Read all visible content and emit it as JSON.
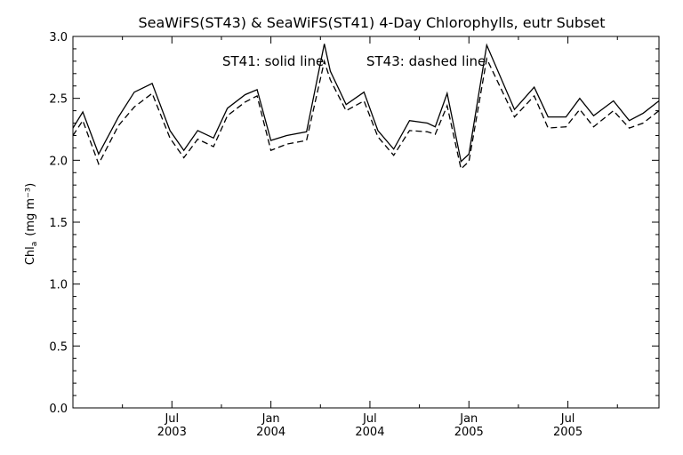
{
  "chart_data": {
    "type": "line",
    "title": "SeaWiFS(ST43) & SeaWiFS(ST41) 4-Day Chlorophylls, eutr Subset",
    "ylabel": "Chla (mg m⁻³)",
    "ylabel_main": "Chl",
    "ylabel_sub": "a",
    "ylabel_units": "(mg m⁻³)",
    "annotation_st41": "ST41: solid line",
    "annotation_st43": "ST43: dashed line",
    "ylim": [
      0.0,
      3.0
    ],
    "yticks": [
      "0.0",
      "0.5",
      "1.0",
      "1.5",
      "2.0",
      "2.5",
      "3.0"
    ],
    "xlim": [
      2003.0,
      2005.96
    ],
    "xticks": [
      {
        "month": "Jul",
        "year": "2003",
        "value": 2003.5
      },
      {
        "month": "Jan",
        "year": "2004",
        "value": 2004.0
      },
      {
        "month": "Jul",
        "year": "2004",
        "value": 2004.5
      },
      {
        "month": "Jan",
        "year": "2005",
        "value": 2005.0
      },
      {
        "month": "Jul",
        "year": "2005",
        "value": 2005.5
      }
    ],
    "minor_ticks": [
      2003.25,
      2003.75,
      2004.25,
      2004.75,
      2005.25,
      2005.75
    ],
    "x": [
      2003.0,
      2003.05,
      2003.13,
      2003.23,
      2003.31,
      2003.4,
      2003.49,
      2003.56,
      2003.63,
      2003.71,
      2003.78,
      2003.87,
      2003.93,
      2004.0,
      2004.08,
      2004.18,
      2004.27,
      2004.3,
      2004.38,
      2004.47,
      2004.54,
      2004.62,
      2004.7,
      2004.79,
      2004.83,
      2004.89,
      2004.96,
      2005.0,
      2005.09,
      2005.23,
      2005.33,
      2005.4,
      2005.49,
      2005.56,
      2005.63,
      2005.73,
      2005.81,
      2005.88,
      2005.96
    ],
    "series": [
      {
        "name": "ST41",
        "style": "solid",
        "color": "#000000",
        "values": [
          2.26,
          2.39,
          2.05,
          2.35,
          2.55,
          2.62,
          2.24,
          2.08,
          2.24,
          2.18,
          2.42,
          2.53,
          2.57,
          2.16,
          2.2,
          2.23,
          2.94,
          2.72,
          2.45,
          2.55,
          2.24,
          2.09,
          2.32,
          2.3,
          2.27,
          2.54,
          1.99,
          2.05,
          2.93,
          2.41,
          2.59,
          2.35,
          2.35,
          2.5,
          2.36,
          2.48,
          2.32,
          2.38,
          2.48
        ]
      },
      {
        "name": "ST43",
        "style": "dashed",
        "color": "#000000",
        "values": [
          2.2,
          2.32,
          1.97,
          2.28,
          2.43,
          2.54,
          2.18,
          2.02,
          2.17,
          2.11,
          2.36,
          2.47,
          2.52,
          2.08,
          2.13,
          2.16,
          2.8,
          2.65,
          2.4,
          2.48,
          2.19,
          2.04,
          2.24,
          2.23,
          2.21,
          2.44,
          1.93,
          1.99,
          2.82,
          2.35,
          2.52,
          2.26,
          2.27,
          2.41,
          2.27,
          2.4,
          2.26,
          2.3,
          2.4
        ]
      }
    ],
    "grid": false,
    "legend": "none"
  }
}
